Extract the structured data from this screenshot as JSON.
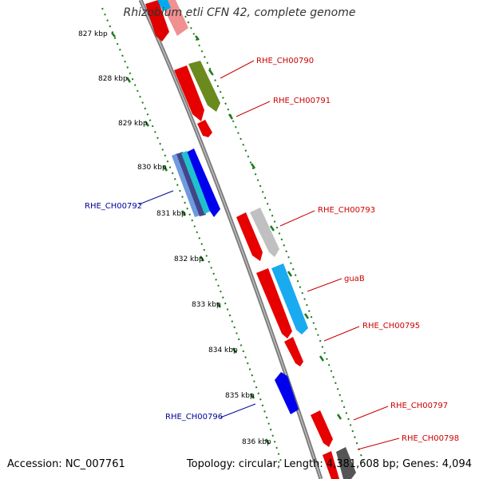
{
  "title": "Rhizobium etli CFN 42, complete genome",
  "accession": "Accession: NC_007761",
  "summary": "Topology: circular; Length: 4,381,608 bp; Genes: 4,094",
  "kbp_labels": [
    "827 kbp",
    "828 kbp",
    "829 kbp",
    "830 kbp",
    "831 kbp",
    "832 kbp",
    "833 kbp",
    "834 kbp",
    "835 kbp",
    "836 kbp"
  ],
  "gene_labels": [
    {
      "text": "RHE_CH00790",
      "strand": "forward"
    },
    {
      "text": "RHE_CH00791",
      "strand": "forward"
    },
    {
      "text": "RHE_CH00792",
      "strand": "reverse"
    },
    {
      "text": "RHE_CH00793",
      "strand": "forward"
    },
    {
      "text": "guaB",
      "strand": "forward"
    },
    {
      "text": "RHE_CH00795",
      "strand": "forward"
    },
    {
      "text": "RHE_CH00796",
      "strand": "reverse"
    },
    {
      "text": "RHE_CH00797",
      "strand": "forward"
    },
    {
      "text": "RHE_CH00798",
      "strand": "forward"
    }
  ],
  "colors": {
    "forward_label": "#cc0000",
    "reverse_label": "#000099",
    "tick": "#1a7a1a",
    "backbone": "#8a8a8a"
  }
}
